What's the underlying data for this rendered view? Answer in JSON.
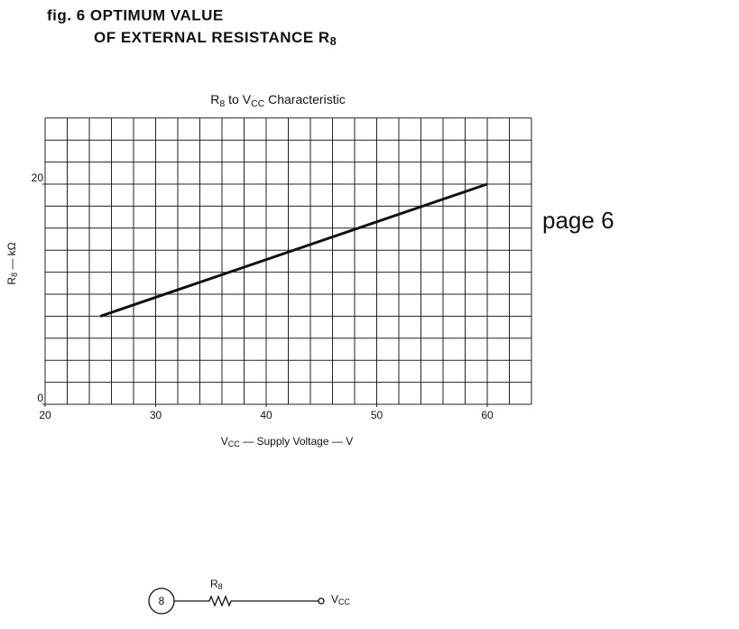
{
  "heading": {
    "line1": "fig. 6 OPTIMUM VALUE",
    "line2": [
      "OF EXTERNAL RESISTANCE R",
      "8"
    ]
  },
  "page_note": "page 6",
  "chart_data": {
    "type": "line",
    "title": [
      "R",
      "8",
      " to V",
      "CC",
      " Characteristic"
    ],
    "x_label": [
      "V",
      "CC",
      " — Supply Voltage — V"
    ],
    "y_label": [
      "R",
      "8",
      " — kΩ"
    ],
    "x": [
      25,
      60
    ],
    "series": [
      {
        "color": "#111111",
        "values": [
          8,
          20
        ]
      }
    ],
    "xlim": [
      20,
      64
    ],
    "ylim": [
      0,
      26
    ],
    "xticks": [
      20,
      30,
      40,
      50,
      60
    ],
    "yticks": [
      0,
      20
    ],
    "xgrid": [
      20,
      22,
      24,
      26,
      28,
      30,
      32,
      34,
      36,
      38,
      40,
      42,
      44,
      46,
      48,
      50,
      52,
      54,
      56,
      58,
      60,
      62,
      64
    ],
    "ygrid": [
      0,
      2,
      4,
      6,
      8,
      10,
      12,
      14,
      16,
      18,
      20,
      22,
      24,
      26
    ],
    "grid": true
  },
  "circuit": {
    "pin": "8",
    "resistor": [
      "R",
      "8"
    ],
    "supply": [
      "V",
      "CC"
    ]
  }
}
